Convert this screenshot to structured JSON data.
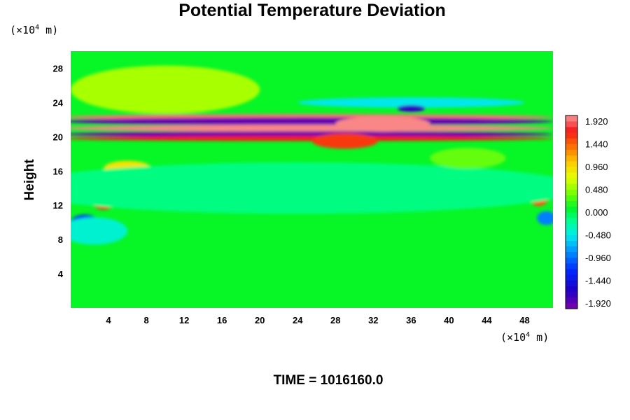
{
  "chart_data": {
    "type": "heatmap",
    "title": "Potential Temperature Deviation",
    "ylabel": "Height",
    "x_unit": {
      "prefix": "(×10",
      "exp": "4",
      "suffix": " m)"
    },
    "y_unit": {
      "prefix": "(×10",
      "exp": "4",
      "suffix": " m)"
    },
    "time_label": "TIME = 1016160.0",
    "xlim": [
      0,
      51
    ],
    "ylim": [
      0,
      30
    ],
    "x_ticks": [
      4,
      8,
      12,
      16,
      20,
      24,
      28,
      32,
      36,
      40,
      44,
      48
    ],
    "y_ticks": [
      4,
      8,
      12,
      16,
      20,
      24,
      28
    ],
    "colorbar": {
      "range": [
        -2.04,
        2.04
      ],
      "levels": 34,
      "tick_values": [
        1.92,
        1.44,
        0.96,
        0.48,
        0.0,
        -0.48,
        -0.96,
        -1.44,
        -1.92
      ],
      "tick_labels": [
        "1.920",
        "1.440",
        "0.960",
        "0.480",
        "0.000",
        "-0.480",
        "-0.960",
        "-1.440",
        "-1.920"
      ]
    },
    "background_value": 0.1,
    "features": [
      {
        "name": "upper-yellow-arc",
        "x": 10,
        "y": 25.5,
        "rx": 10,
        "ry": 2.8,
        "value": 0.55
      },
      {
        "name": "upper-cyan-band",
        "x": 36,
        "y": 24,
        "rx": 12,
        "ry": 0.6,
        "value": -0.5
      },
      {
        "name": "top-warm-band",
        "x": 25,
        "y": 22.3,
        "rx": 26,
        "ry": 0.35,
        "value": 1.95
      },
      {
        "name": "top-cold-band",
        "x": 25,
        "y": 21.8,
        "rx": 26,
        "ry": 0.45,
        "value": -1.95
      },
      {
        "name": "middle-warm-band",
        "x": 25,
        "y": 21.0,
        "rx": 26,
        "ry": 0.4,
        "value": 2.0
      },
      {
        "name": "lower-cold-band",
        "x": 25,
        "y": 20.3,
        "rx": 26,
        "ry": 0.35,
        "value": -2.0
      },
      {
        "name": "lower-warm-band",
        "x": 25,
        "y": 19.8,
        "rx": 26,
        "ry": 0.3,
        "value": 1.7
      },
      {
        "name": "central-warm-blob",
        "x": 33,
        "y": 21.5,
        "rx": 5,
        "ry": 0.9,
        "value": 2.0
      },
      {
        "name": "central-red-blob",
        "x": 29,
        "y": 19.5,
        "rx": 3.5,
        "ry": 0.9,
        "value": 1.6
      },
      {
        "name": "cold-patch-36",
        "x": 36,
        "y": 23.3,
        "rx": 1.5,
        "ry": 0.4,
        "value": -1.7
      },
      {
        "name": "warm-patch-8",
        "x": 8.5,
        "y": 13.5,
        "rx": 2.2,
        "ry": 1.3,
        "value": 1.6
      },
      {
        "name": "warm-patch-4",
        "x": 3.5,
        "y": 12.5,
        "rx": 1.3,
        "ry": 1.0,
        "value": 1.7
      },
      {
        "name": "warm-patch-6",
        "x": 6,
        "y": 16.3,
        "rx": 2.5,
        "ry": 0.9,
        "value": 0.9
      },
      {
        "name": "warm-patch-49",
        "x": 49.5,
        "y": 13.5,
        "rx": 1.2,
        "ry": 1.6,
        "value": 1.5
      },
      {
        "name": "cool-patch-1",
        "x": 1.5,
        "y": 10,
        "rx": 1.5,
        "ry": 0.9,
        "value": -1.2
      },
      {
        "name": "cool-patch-left",
        "x": 2.5,
        "y": 9,
        "rx": 3.5,
        "ry": 1.6,
        "value": -0.4
      },
      {
        "name": "cool-patch-50",
        "x": 50.3,
        "y": 10.5,
        "rx": 1.0,
        "ry": 0.8,
        "value": -0.9
      },
      {
        "name": "cool-wash-mid",
        "x": 24,
        "y": 14,
        "rx": 30,
        "ry": 3,
        "value": -0.15
      },
      {
        "name": "yellow-patch-right",
        "x": 42,
        "y": 17.5,
        "rx": 4,
        "ry": 1.2,
        "value": 0.35
      }
    ]
  }
}
